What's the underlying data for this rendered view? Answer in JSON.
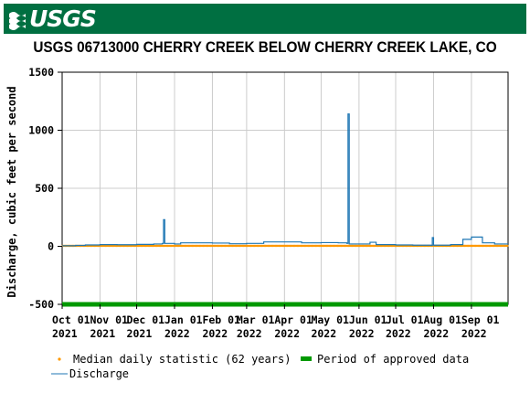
{
  "header": {
    "logo_text": "USGS",
    "title": "USGS 06713000 CHERRY CREEK BELOW CHERRY CREEK LAKE, CO"
  },
  "colors": {
    "banner": "#006f41",
    "discharge": "#1f77b4",
    "median": "#ff9900",
    "approved": "#009900",
    "grid": "#cccccc"
  },
  "chart_data": {
    "type": "line",
    "title": "USGS 06713000 CHERRY CREEK BELOW CHERRY CREEK LAKE, CO",
    "ylabel": "Discharge, cubic feet per second",
    "xlabel": "",
    "ylim": [
      -500,
      1500
    ],
    "xlim": [
      "2021-10-01",
      "2022-09-30"
    ],
    "yticks": [
      -500,
      0,
      500,
      1000,
      1500
    ],
    "xticks": [
      {
        "date": "2021-10-01",
        "label": [
          "Oct 01",
          "2021"
        ]
      },
      {
        "date": "2021-11-01",
        "label": [
          "Nov 01",
          "2021"
        ]
      },
      {
        "date": "2021-12-01",
        "label": [
          "Dec 01",
          "2021"
        ]
      },
      {
        "date": "2022-01-01",
        "label": [
          "Jan 01",
          "2022"
        ]
      },
      {
        "date": "2022-02-01",
        "label": [
          "Feb 01",
          "2022"
        ]
      },
      {
        "date": "2022-03-01",
        "label": [
          "Mar 01",
          "2022"
        ]
      },
      {
        "date": "2022-04-01",
        "label": [
          "Apr 01",
          "2022"
        ]
      },
      {
        "date": "2022-05-01",
        "label": [
          "May 01",
          "2022"
        ]
      },
      {
        "date": "2022-06-01",
        "label": [
          "Jun 01",
          "2022"
        ]
      },
      {
        "date": "2022-07-01",
        "label": [
          "Jul 01",
          "2022"
        ]
      },
      {
        "date": "2022-08-01",
        "label": [
          "Aug 01",
          "2022"
        ]
      },
      {
        "date": "2022-09-01",
        "label": [
          "Sep 01",
          "2022"
        ]
      }
    ],
    "grid": true,
    "legend_position": "bottom",
    "series": [
      {
        "name": "Discharge",
        "type": "line",
        "points": [
          [
            "2021-10-01",
            5
          ],
          [
            "2021-10-12",
            8
          ],
          [
            "2021-10-20",
            12
          ],
          [
            "2021-11-01",
            15
          ],
          [
            "2021-11-15",
            14
          ],
          [
            "2021-12-01",
            17
          ],
          [
            "2021-12-15",
            20
          ],
          [
            "2021-12-22",
            25
          ],
          [
            "2021-12-23",
            230
          ],
          [
            "2021-12-24",
            25
          ],
          [
            "2022-01-01",
            20
          ],
          [
            "2022-01-06",
            30
          ],
          [
            "2022-02-01",
            28
          ],
          [
            "2022-02-15",
            22
          ],
          [
            "2022-03-01",
            25
          ],
          [
            "2022-03-15",
            38
          ],
          [
            "2022-04-01",
            38
          ],
          [
            "2022-04-15",
            30
          ],
          [
            "2022-05-01",
            32
          ],
          [
            "2022-05-15",
            30
          ],
          [
            "2022-05-22",
            25
          ],
          [
            "2022-05-23",
            1140
          ],
          [
            "2022-05-24",
            20
          ],
          [
            "2022-06-01",
            20
          ],
          [
            "2022-06-10",
            35
          ],
          [
            "2022-06-15",
            15
          ],
          [
            "2022-07-01",
            12
          ],
          [
            "2022-07-15",
            10
          ],
          [
            "2022-07-30",
            8
          ],
          [
            "2022-07-31",
            75
          ],
          [
            "2022-08-01",
            10
          ],
          [
            "2022-08-15",
            15
          ],
          [
            "2022-08-25",
            60
          ],
          [
            "2022-09-01",
            80
          ],
          [
            "2022-09-08",
            80
          ],
          [
            "2022-09-10",
            30
          ],
          [
            "2022-09-20",
            20
          ],
          [
            "2022-09-30",
            20
          ]
        ]
      },
      {
        "name": "Median daily statistic (62 years)",
        "type": "scatter",
        "start": "2021-10-01",
        "end": "2022-09-30",
        "value": 4
      },
      {
        "name": "Period of approved data",
        "type": "band",
        "start": "2021-10-01",
        "end": "2022-09-30",
        "value": -500
      }
    ]
  },
  "legend": {
    "median_label": "Median daily statistic (62 years)",
    "approved_label": "Period of approved data",
    "discharge_label": "Discharge"
  }
}
